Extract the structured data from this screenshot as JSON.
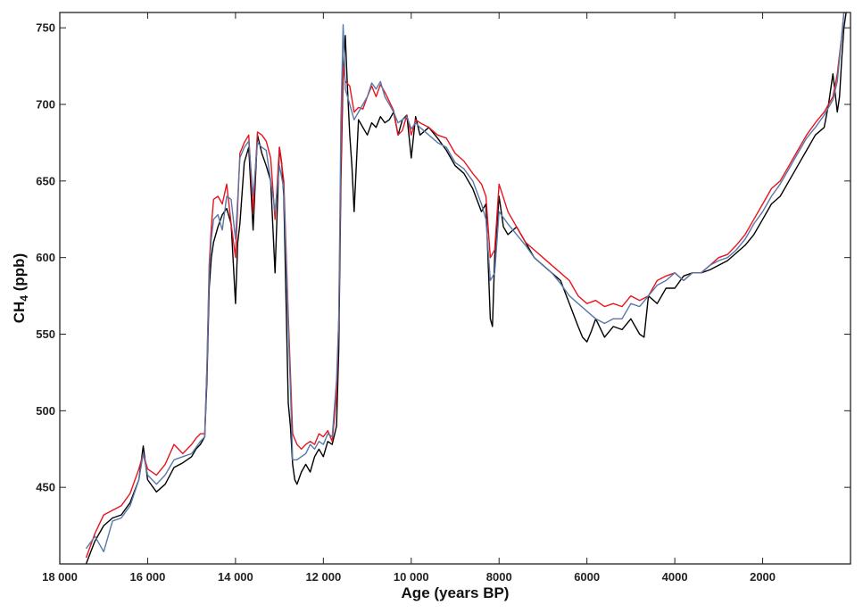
{
  "chart_data": {
    "type": "line",
    "xlabel": "Age (years BP)",
    "ylabel": {
      "main": "CH",
      "sub": "4",
      "tail": " (ppb)"
    },
    "xlim": [
      18000,
      0
    ],
    "ylim": [
      400,
      760
    ],
    "x_reversed": true,
    "grid": false,
    "legend": "none",
    "x_ticks": [
      18000,
      16000,
      14000,
      12000,
      10000,
      8000,
      6000,
      4000,
      2000
    ],
    "x_tick_labels": [
      "18 000",
      "16 000",
      "14 000",
      "12 000",
      "10 000",
      "8000",
      "6000",
      "4000",
      "2000"
    ],
    "y_ticks": [
      450,
      500,
      550,
      600,
      650,
      700,
      750
    ],
    "y_tick_labels": [
      "450",
      "500",
      "550",
      "600",
      "650",
      "700",
      "750"
    ],
    "series": [
      {
        "color": "#000000",
        "x": [
          17400,
          17200,
          17000,
          16800,
          16600,
          16400,
          16200,
          16100,
          16000,
          15800,
          15600,
          15400,
          15200,
          15000,
          14900,
          14800,
          14700,
          14650,
          14600,
          14550,
          14500,
          14400,
          14300,
          14200,
          14100,
          14000,
          13950,
          13900,
          13800,
          13700,
          13600,
          13500,
          13400,
          13300,
          13200,
          13100,
          13000,
          12950,
          12900,
          12800,
          12750,
          12700,
          12650,
          12600,
          12500,
          12400,
          12300,
          12200,
          12100,
          12000,
          11900,
          11800,
          11700,
          11650,
          11600,
          11550,
          11500,
          11450,
          11400,
          11350,
          11300,
          11200,
          11100,
          11000,
          10900,
          10800,
          10700,
          10600,
          10500,
          10400,
          10300,
          10200,
          10100,
          10000,
          9900,
          9800,
          9600,
          9400,
          9200,
          9000,
          8800,
          8600,
          8400,
          8300,
          8200,
          8150,
          8100,
          8050,
          8000,
          7900,
          7800,
          7600,
          7400,
          7200,
          7000,
          6800,
          6600,
          6400,
          6200,
          6100,
          6000,
          5900,
          5800,
          5600,
          5400,
          5200,
          5000,
          4800,
          4700,
          4600,
          4400,
          4200,
          4000,
          3800,
          3600,
          3400,
          3200,
          3000,
          2800,
          2600,
          2400,
          2200,
          2000,
          1800,
          1600,
          1400,
          1200,
          1000,
          800,
          600,
          500,
          400,
          300,
          250,
          200,
          150,
          100
        ],
        "y": [
          400,
          415,
          425,
          430,
          432,
          440,
          455,
          477,
          455,
          447,
          452,
          463,
          466,
          470,
          475,
          478,
          483,
          520,
          580,
          600,
          610,
          620,
          628,
          632,
          622,
          570,
          610,
          622,
          662,
          672,
          618,
          680,
          668,
          660,
          650,
          590,
          672,
          662,
          640,
          505,
          490,
          465,
          455,
          452,
          460,
          465,
          460,
          470,
          475,
          470,
          480,
          478,
          490,
          540,
          650,
          720,
          745,
          710,
          680,
          660,
          630,
          690,
          685,
          680,
          688,
          685,
          692,
          688,
          690,
          695,
          680,
          690,
          693,
          665,
          692,
          680,
          685,
          678,
          670,
          660,
          655,
          645,
          630,
          635,
          560,
          555,
          600,
          620,
          640,
          620,
          615,
          620,
          610,
          600,
          595,
          590,
          585,
          570,
          555,
          548,
          545,
          552,
          560,
          548,
          555,
          553,
          560,
          550,
          548,
          575,
          570,
          580,
          580,
          588,
          590,
          590,
          592,
          595,
          598,
          603,
          608,
          615,
          625,
          635,
          640,
          650,
          660,
          670,
          680,
          685,
          700,
          720,
          695,
          705,
          730,
          750,
          760
        ]
      },
      {
        "color": "#e8141e",
        "x": [
          17400,
          17200,
          17000,
          16800,
          16600,
          16400,
          16200,
          16100,
          16000,
          15800,
          15600,
          15400,
          15200,
          15000,
          14900,
          14800,
          14700,
          14650,
          14600,
          14550,
          14500,
          14400,
          14300,
          14200,
          14100,
          14000,
          13900,
          13800,
          13700,
          13600,
          13500,
          13400,
          13300,
          13200,
          13100,
          13000,
          12900,
          12800,
          12750,
          12700,
          12600,
          12500,
          12400,
          12300,
          12200,
          12100,
          12000,
          11900,
          11800,
          11700,
          11650,
          11600,
          11550,
          11500,
          11400,
          11300,
          11200,
          11100,
          11000,
          10900,
          10800,
          10700,
          10600,
          10500,
          10400,
          10300,
          10200,
          10100,
          10000,
          9900,
          9800,
          9600,
          9400,
          9200,
          9000,
          8800,
          8600,
          8400,
          8300,
          8200,
          8100,
          8000,
          7800,
          7600,
          7400,
          7200,
          7000,
          6800,
          6600,
          6400,
          6200,
          6000,
          5800,
          5600,
          5400,
          5200,
          5000,
          4800,
          4600,
          4400,
          4200,
          4000,
          3800,
          3600,
          3400,
          3200,
          3000,
          2800,
          2600,
          2400,
          2200,
          2000,
          1800,
          1600,
          1400,
          1200,
          1000,
          800,
          600,
          400,
          300,
          200,
          150,
          100
        ],
        "y": [
          404,
          420,
          432,
          435,
          438,
          446,
          462,
          472,
          462,
          458,
          465,
          478,
          472,
          478,
          482,
          485,
          485,
          530,
          595,
          620,
          638,
          640,
          635,
          648,
          622,
          600,
          668,
          675,
          680,
          630,
          682,
          680,
          676,
          665,
          625,
          672,
          650,
          562,
          525,
          485,
          478,
          475,
          478,
          480,
          478,
          485,
          483,
          487,
          480,
          510,
          560,
          660,
          725,
          715,
          712,
          695,
          698,
          697,
          705,
          712,
          705,
          713,
          708,
          702,
          696,
          680,
          683,
          693,
          680,
          690,
          688,
          685,
          680,
          678,
          668,
          663,
          655,
          648,
          640,
          600,
          605,
          648,
          630,
          620,
          610,
          605,
          600,
          595,
          590,
          585,
          575,
          570,
          572,
          568,
          570,
          568,
          575,
          572,
          575,
          585,
          588,
          590,
          585,
          590,
          590,
          595,
          600,
          602,
          608,
          615,
          625,
          635,
          645,
          650,
          660,
          670,
          680,
          688,
          695,
          705,
          720,
          745,
          760,
          760
        ]
      },
      {
        "color": "#5878a8",
        "x": [
          17400,
          17200,
          17000,
          16800,
          16600,
          16400,
          16200,
          16100,
          16000,
          15800,
          15600,
          15400,
          15200,
          15000,
          14900,
          14800,
          14700,
          14650,
          14600,
          14550,
          14500,
          14400,
          14300,
          14200,
          14100,
          14000,
          13900,
          13800,
          13700,
          13600,
          13500,
          13400,
          13300,
          13200,
          13100,
          13000,
          12900,
          12800,
          12750,
          12700,
          12600,
          12500,
          12400,
          12300,
          12200,
          12100,
          12000,
          11900,
          11800,
          11700,
          11650,
          11600,
          11550,
          11500,
          11400,
          11300,
          11200,
          11100,
          11000,
          10900,
          10800,
          10700,
          10600,
          10500,
          10400,
          10300,
          10200,
          10100,
          10000,
          9900,
          9800,
          9600,
          9400,
          9200,
          9000,
          8800,
          8600,
          8400,
          8300,
          8200,
          8100,
          8000,
          7800,
          7600,
          7400,
          7200,
          7000,
          6800,
          6600,
          6400,
          6200,
          6000,
          5800,
          5600,
          5400,
          5200,
          5000,
          4800,
          4600,
          4400,
          4200,
          4000,
          3800,
          3600,
          3400,
          3200,
          3000,
          2800,
          2600,
          2400,
          2200,
          2000,
          1800,
          1600,
          1400,
          1200,
          1000,
          800,
          600,
          400,
          300,
          200,
          150,
          100
        ],
        "y": [
          410,
          418,
          408,
          428,
          430,
          438,
          455,
          472,
          458,
          452,
          458,
          468,
          470,
          472,
          476,
          480,
          483,
          528,
          590,
          612,
          625,
          628,
          618,
          640,
          638,
          612,
          665,
          672,
          676,
          640,
          675,
          672,
          670,
          650,
          630,
          660,
          645,
          555,
          515,
          468,
          468,
          470,
          472,
          478,
          475,
          480,
          478,
          485,
          483,
          520,
          560,
          690,
          752,
          710,
          700,
          690,
          695,
          700,
          705,
          714,
          710,
          715,
          705,
          700,
          695,
          688,
          690,
          692,
          684,
          688,
          685,
          680,
          675,
          672,
          662,
          658,
          650,
          635,
          625,
          585,
          590,
          630,
          622,
          615,
          608,
          600,
          595,
          590,
          583,
          575,
          570,
          565,
          560,
          557,
          560,
          560,
          570,
          568,
          575,
          582,
          585,
          590,
          585,
          590,
          590,
          595,
          598,
          600,
          605,
          612,
          622,
          630,
          640,
          648,
          658,
          668,
          678,
          685,
          693,
          703,
          715,
          745,
          760,
          760
        ]
      }
    ]
  }
}
